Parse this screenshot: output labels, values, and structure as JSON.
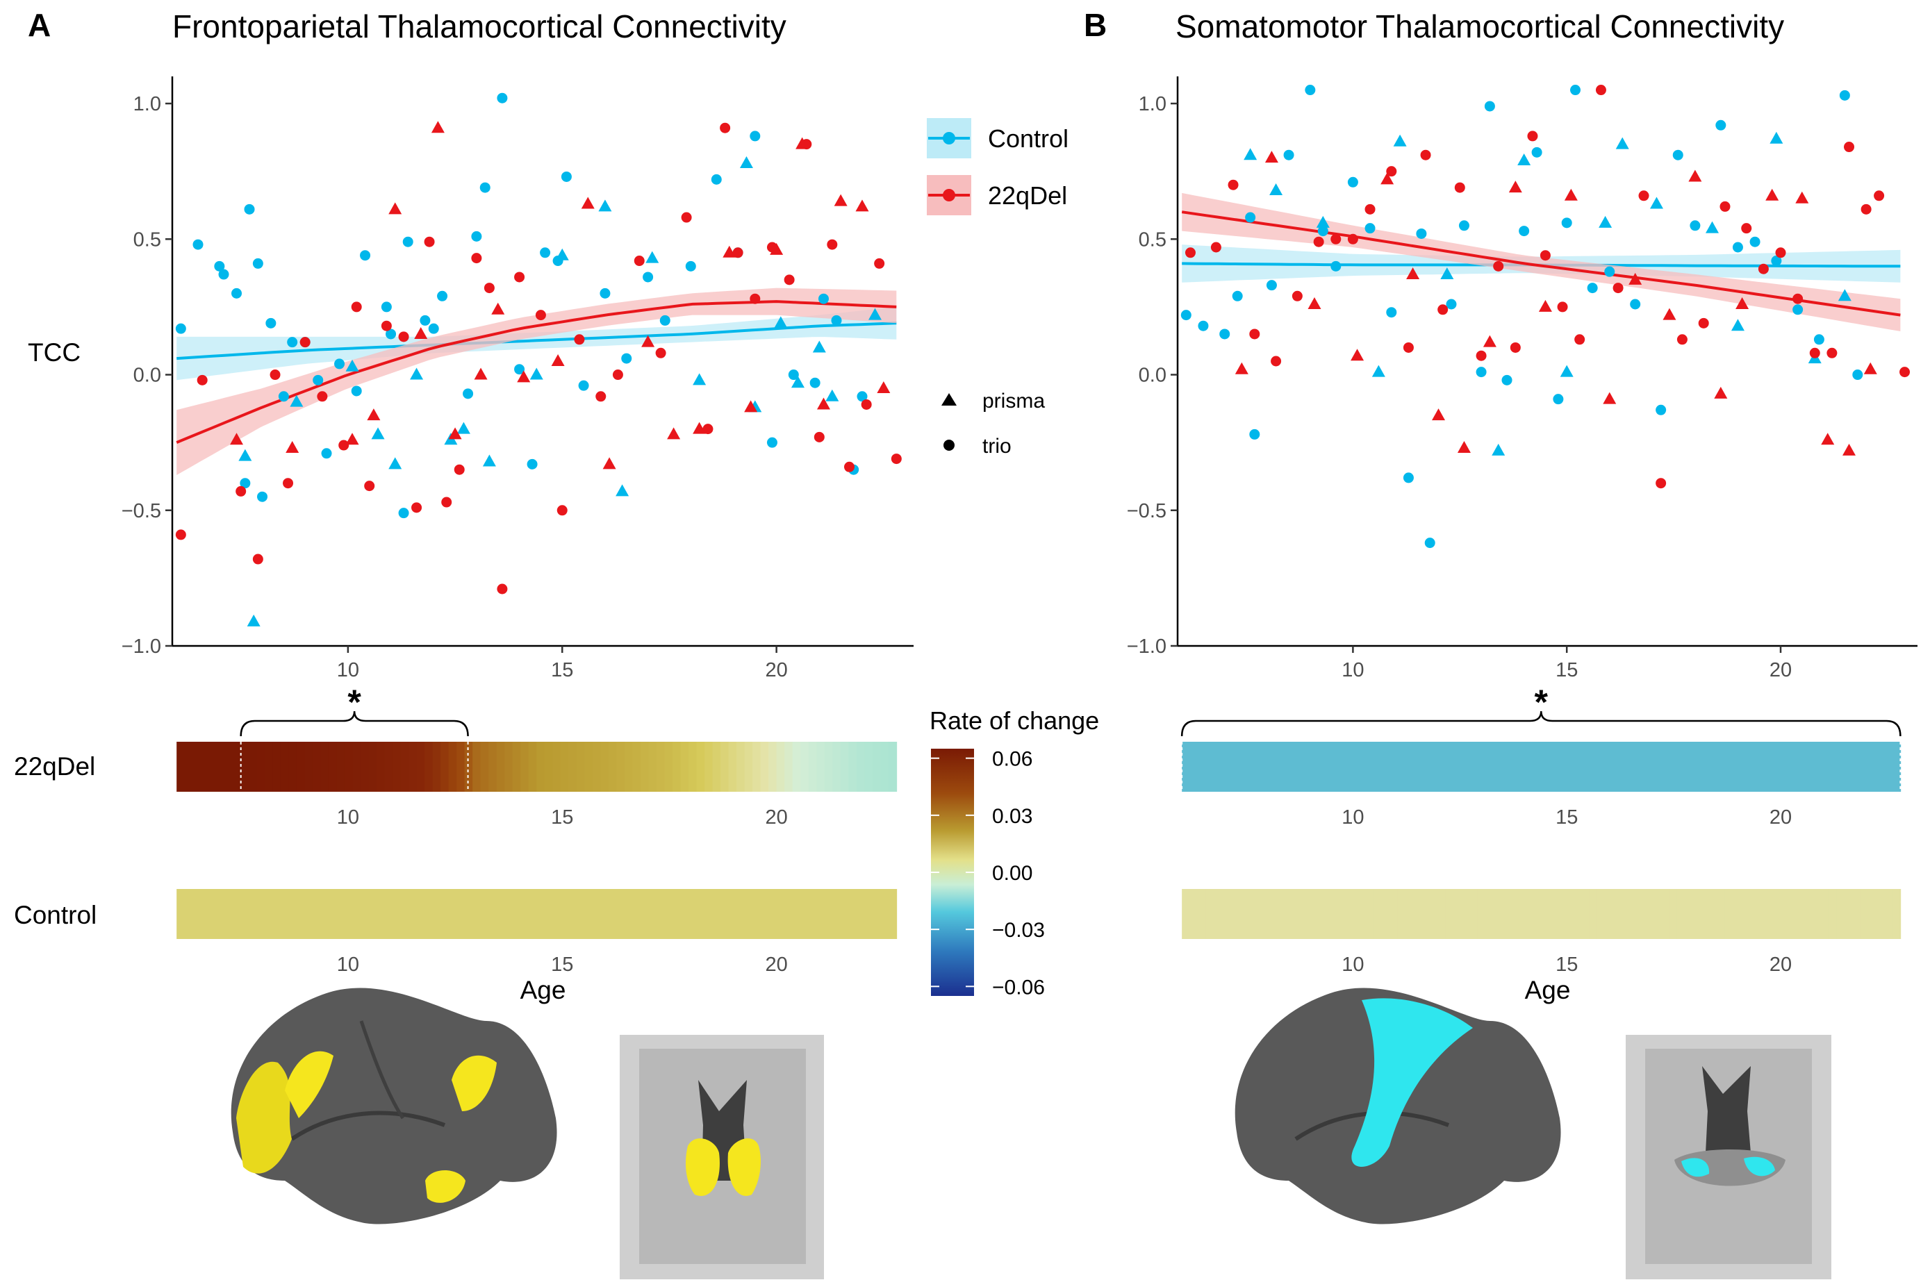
{
  "panels": {
    "a": {
      "letter": "A",
      "title": "Frontoparietal Thalamocortical Connectivity"
    },
    "b": {
      "letter": "B",
      "title": "Somatomotor Thalamocortical Connectivity"
    }
  },
  "legend": {
    "groups": [
      "Control",
      "22qDel"
    ],
    "scanners": [
      "prisma",
      "trio"
    ],
    "colorbar_title": "Rate of change",
    "colorbar_ticks": [
      "0.06",
      "0.03",
      "0.00",
      "−0.03",
      "−0.06"
    ]
  },
  "labels": {
    "tcc": "TCC",
    "row_22q": "22qDel",
    "row_control": "Control",
    "age": "Age",
    "star": "*"
  },
  "colors": {
    "control": "#00B7EB",
    "deletion": "#E8161B",
    "control_band": "#BDEBF7",
    "deletion_band": "#F7BDBE",
    "yellow_roi": "#F5E61E",
    "cyan_roi": "#2FE6EE"
  },
  "chart_data": [
    {
      "id": "A",
      "type": "scatter",
      "title": "Frontoparietal Thalamocortical Connectivity",
      "xlabel": "",
      "ylabel": "TCC",
      "xlim": [
        5.9,
        23.2
      ],
      "ylim": [
        -1.0,
        1.1
      ],
      "xticks": [
        10,
        15,
        20
      ],
      "yticks": [
        -1.0,
        -0.5,
        0.0,
        0.5,
        1.0
      ],
      "ytick_labels": [
        "−1.0",
        "−0.5",
        "0.0",
        "0.5",
        "1.0"
      ],
      "fits": [
        {
          "name": "Control",
          "x": [
            6.0,
            9.0,
            12.0,
            15.0,
            18.0,
            21.0,
            22.8
          ],
          "y": [
            0.06,
            0.09,
            0.11,
            0.13,
            0.15,
            0.18,
            0.19
          ],
          "band": [
            0.08,
            0.05,
            0.03,
            0.03,
            0.03,
            0.04,
            0.06
          ]
        },
        {
          "name": "22qDel",
          "x": [
            6.0,
            8.0,
            10.0,
            12.0,
            14.0,
            16.0,
            18.0,
            20.0,
            22.8
          ],
          "y": [
            -0.25,
            -0.12,
            0.0,
            0.1,
            0.17,
            0.22,
            0.26,
            0.27,
            0.25
          ],
          "band": [
            0.12,
            0.07,
            0.05,
            0.04,
            0.04,
            0.04,
            0.04,
            0.05,
            0.06
          ]
        }
      ],
      "points": {
        "Control": {
          "trio_x": [
            6.1,
            6.5,
            7.0,
            7.1,
            7.4,
            7.6,
            7.7,
            7.9,
            8.0,
            8.2,
            8.5,
            8.7,
            9.0,
            9.3,
            9.5,
            9.8,
            10.2,
            10.4,
            10.9,
            11.0,
            11.3,
            11.4,
            11.8,
            12.0,
            12.2,
            12.8,
            13.0,
            13.2,
            13.6,
            14.0,
            14.3,
            14.6,
            14.9,
            15.1,
            15.5,
            16.0,
            16.5,
            17.0,
            17.4,
            18.0,
            18.6,
            19.1,
            19.5,
            19.9,
            20.4,
            20.9,
            21.1,
            21.4,
            21.8,
            22.0
          ],
          "trio_y": [
            0.17,
            0.48,
            0.4,
            0.37,
            0.3,
            -0.4,
            0.61,
            0.41,
            -0.45,
            0.19,
            -0.08,
            0.12,
            0.12,
            -0.02,
            -0.29,
            0.04,
            -0.06,
            0.44,
            0.25,
            0.15,
            -0.51,
            0.49,
            0.2,
            0.17,
            0.29,
            -0.07,
            0.51,
            0.69,
            1.02,
            0.02,
            -0.33,
            0.45,
            0.42,
            0.73,
            -0.04,
            0.3,
            0.06,
            0.36,
            0.2,
            0.4,
            0.72,
            0.45,
            0.88,
            -0.25,
            0.0,
            -0.03,
            0.28,
            0.2,
            -0.35,
            -0.08
          ],
          "prisma_x": [
            7.6,
            7.8,
            8.8,
            10.1,
            10.7,
            11.1,
            11.6,
            12.4,
            12.7,
            13.3,
            14.4,
            15.0,
            16.0,
            16.4,
            17.1,
            18.2,
            19.3,
            19.5,
            20.1,
            20.5,
            21.0,
            21.3,
            22.3
          ],
          "prisma_y": [
            -0.3,
            -0.91,
            -0.1,
            0.03,
            -0.22,
            -0.33,
            0.0,
            -0.24,
            -0.2,
            -0.32,
            0.0,
            0.44,
            0.62,
            -0.43,
            0.43,
            -0.02,
            0.78,
            -0.12,
            0.19,
            -0.03,
            0.1,
            -0.08,
            0.22
          ]
        },
        "22qDel": {
          "trio_x": [
            6.1,
            6.6,
            7.5,
            7.9,
            8.3,
            8.6,
            9.0,
            9.4,
            9.9,
            10.2,
            10.5,
            10.9,
            11.3,
            11.6,
            11.9,
            12.3,
            12.6,
            13.0,
            13.3,
            13.6,
            14.0,
            14.5,
            15.0,
            15.4,
            15.9,
            16.3,
            16.8,
            17.3,
            17.9,
            18.4,
            18.8,
            19.1,
            19.5,
            19.9,
            20.3,
            20.7,
            21.0,
            21.3,
            21.7,
            22.1,
            22.4,
            22.8
          ],
          "trio_y": [
            -0.59,
            -0.02,
            -0.43,
            -0.68,
            0.0,
            -0.4,
            0.12,
            -0.08,
            -0.26,
            0.25,
            -0.41,
            0.18,
            0.14,
            -0.49,
            0.49,
            -0.47,
            -0.35,
            0.43,
            0.32,
            -0.79,
            0.36,
            0.22,
            -0.5,
            0.13,
            -0.08,
            0.0,
            0.42,
            0.08,
            0.58,
            -0.2,
            0.91,
            0.45,
            0.28,
            0.47,
            0.35,
            0.85,
            -0.23,
            0.48,
            -0.34,
            -0.11,
            0.41,
            -0.31
          ],
          "prisma_x": [
            7.4,
            8.7,
            10.1,
            10.6,
            11.1,
            11.7,
            12.1,
            12.5,
            13.1,
            13.5,
            14.1,
            14.9,
            15.6,
            16.1,
            17.0,
            17.6,
            18.2,
            18.9,
            19.4,
            20.0,
            20.6,
            21.1,
            21.5,
            22.0,
            22.5
          ],
          "prisma_y": [
            -0.24,
            -0.27,
            -0.24,
            -0.15,
            0.61,
            0.15,
            0.91,
            -0.22,
            0.0,
            0.24,
            -0.01,
            0.05,
            0.63,
            -0.33,
            0.12,
            -0.22,
            -0.2,
            0.45,
            -0.12,
            0.46,
            0.85,
            -0.11,
            0.64,
            0.62,
            -0.05
          ]
        }
      }
    },
    {
      "id": "B",
      "type": "scatter",
      "title": "Somatomotor Thalamocortical Connectivity",
      "xlabel": "",
      "ylabel": "",
      "xlim": [
        5.9,
        23.2
      ],
      "ylim": [
        -1.0,
        1.1
      ],
      "xticks": [
        10,
        15,
        20
      ],
      "yticks": [
        -1.0,
        -0.5,
        0.0,
        0.5,
        1.0
      ],
      "ytick_labels": [
        "−1.0",
        "−0.5",
        "0.0",
        "0.5",
        "1.0"
      ],
      "fits": [
        {
          "name": "Control",
          "x": [
            6.0,
            10.0,
            14.0,
            18.0,
            22.8
          ],
          "y": [
            0.41,
            0.405,
            0.405,
            0.402,
            0.4
          ],
          "band": [
            0.07,
            0.04,
            0.03,
            0.04,
            0.06
          ]
        },
        {
          "name": "22qDel",
          "x": [
            6.0,
            10.0,
            14.0,
            18.0,
            22.8
          ],
          "y": [
            0.6,
            0.51,
            0.41,
            0.33,
            0.22
          ],
          "band": [
            0.07,
            0.04,
            0.03,
            0.04,
            0.06
          ]
        }
      ],
      "points": {
        "Control": {
          "trio_x": [
            6.1,
            6.5,
            7.0,
            7.3,
            7.6,
            7.7,
            8.1,
            8.5,
            9.0,
            9.3,
            9.6,
            10.0,
            10.4,
            10.9,
            11.3,
            11.6,
            11.8,
            12.3,
            12.6,
            13.0,
            13.2,
            13.6,
            14.0,
            14.3,
            14.8,
            15.0,
            15.2,
            15.6,
            16.0,
            16.6,
            17.2,
            17.6,
            18.0,
            18.6,
            19.0,
            19.4,
            19.9,
            20.4,
            20.9,
            21.5,
            21.8
          ],
          "trio_y": [
            0.22,
            0.18,
            0.15,
            0.29,
            0.58,
            -0.22,
            0.33,
            0.81,
            1.05,
            0.53,
            0.4,
            0.71,
            0.54,
            0.23,
            -0.38,
            0.52,
            -0.62,
            0.26,
            0.55,
            0.01,
            0.99,
            -0.02,
            0.53,
            0.82,
            -0.09,
            0.56,
            1.05,
            0.32,
            0.38,
            0.26,
            -0.13,
            0.81,
            0.55,
            0.92,
            0.47,
            0.49,
            0.42,
            0.24,
            0.13,
            1.03,
            0.0
          ],
          "prisma_x": [
            7.6,
            8.2,
            9.3,
            10.6,
            11.1,
            12.2,
            13.4,
            14.0,
            15.0,
            15.9,
            16.3,
            17.1,
            18.4,
            19.0,
            19.9,
            20.8,
            21.5
          ],
          "prisma_y": [
            0.81,
            0.68,
            0.56,
            0.01,
            0.86,
            0.37,
            -0.28,
            0.79,
            0.01,
            0.56,
            0.85,
            0.63,
            0.54,
            0.18,
            0.87,
            0.06,
            0.29
          ]
        },
        "22qDel": {
          "trio_x": [
            6.2,
            6.8,
            7.2,
            7.7,
            8.2,
            8.7,
            9.2,
            9.6,
            10.0,
            10.4,
            10.9,
            11.3,
            11.7,
            12.1,
            12.5,
            13.0,
            13.4,
            13.8,
            14.2,
            14.5,
            14.9,
            15.3,
            15.8,
            16.2,
            16.8,
            17.2,
            17.7,
            18.2,
            18.7,
            19.2,
            19.6,
            20.0,
            20.4,
            20.8,
            21.2,
            21.6,
            22.0,
            22.3,
            22.9
          ],
          "trio_y": [
            0.45,
            0.47,
            0.7,
            0.15,
            0.05,
            0.29,
            0.49,
            0.5,
            0.5,
            0.61,
            0.75,
            0.1,
            0.81,
            0.24,
            0.69,
            0.07,
            0.4,
            0.1,
            0.88,
            0.44,
            0.25,
            0.13,
            1.05,
            0.32,
            0.66,
            -0.4,
            0.13,
            0.19,
            0.62,
            0.54,
            0.39,
            0.45,
            0.28,
            0.08,
            0.08,
            0.84,
            0.61,
            0.66,
            0.01
          ],
          "prisma_x": [
            7.4,
            8.1,
            9.1,
            10.1,
            10.8,
            11.4,
            12.0,
            12.6,
            13.2,
            13.8,
            14.5,
            15.1,
            16.0,
            16.6,
            17.4,
            18.0,
            18.6,
            19.1,
            19.8,
            20.5,
            21.1,
            21.6,
            22.1
          ],
          "prisma_y": [
            0.02,
            0.8,
            0.26,
            0.07,
            0.72,
            0.37,
            -0.15,
            -0.27,
            0.12,
            0.69,
            0.25,
            0.66,
            -0.09,
            0.35,
            0.22,
            0.73,
            -0.07,
            0.26,
            0.66,
            0.65,
            -0.24,
            -0.28,
            0.02
          ]
        }
      }
    },
    {
      "id": "A-rate",
      "type": "heatmap",
      "xlabel": "Age",
      "xlim": [
        5.9,
        23.2
      ],
      "xticks": [
        10,
        15,
        20
      ],
      "rows": [
        {
          "name": "22qDel",
          "age": [
            6.0,
            7.5,
            9.0,
            10.5,
            12.0,
            13.0,
            14.5,
            16.0,
            17.5,
            19.0,
            20.5,
            22.0,
            22.8
          ],
          "rate": [
            0.065,
            0.065,
            0.063,
            0.058,
            0.048,
            0.036,
            0.03,
            0.026,
            0.02,
            0.01,
            0.0,
            -0.008,
            -0.01
          ],
          "significant_range": [
            7.5,
            12.8
          ]
        },
        {
          "name": "Control",
          "age": [
            6.0,
            22.8
          ],
          "rate": [
            0.012,
            0.012
          ]
        }
      ]
    },
    {
      "id": "B-rate",
      "type": "heatmap",
      "xlabel": "Age",
      "xlim": [
        5.9,
        23.2
      ],
      "xticks": [
        10,
        15,
        20
      ],
      "rows": [
        {
          "name": "22qDel",
          "age": [
            6.0,
            22.8
          ],
          "rate": [
            -0.025,
            -0.025
          ],
          "significant_range": [
            6.0,
            22.8
          ]
        },
        {
          "name": "Control",
          "age": [
            6.0,
            22.8
          ],
          "rate": [
            0.006,
            0.006
          ]
        }
      ]
    }
  ]
}
